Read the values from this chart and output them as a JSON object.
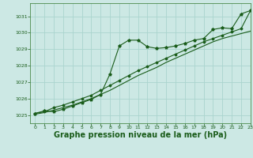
{
  "background_color": "#cce8e4",
  "grid_color": "#aad4ce",
  "line_color": "#1a5c1a",
  "xlabel": "Graphe pression niveau de la mer (hPa)",
  "xlabel_fontsize": 7,
  "xlim": [
    -0.5,
    23
  ],
  "ylim": [
    1024.5,
    1031.8
  ],
  "yticks": [
    1025,
    1026,
    1027,
    1028,
    1029,
    1030,
    1031
  ],
  "xticks": [
    0,
    1,
    2,
    3,
    4,
    5,
    6,
    7,
    8,
    9,
    10,
    11,
    12,
    13,
    14,
    15,
    16,
    17,
    18,
    19,
    20,
    21,
    22,
    23
  ],
  "series1_x": [
    0,
    1,
    2,
    3,
    4,
    5,
    6,
    7,
    8,
    9,
    10,
    11,
    12,
    13,
    14,
    15,
    16,
    17,
    18,
    19,
    20,
    21,
    22,
    23
  ],
  "series1_y": [
    1025.1,
    1025.25,
    1025.2,
    1025.35,
    1025.55,
    1025.75,
    1025.95,
    1026.25,
    1027.5,
    1029.2,
    1029.55,
    1029.55,
    1029.15,
    1029.05,
    1029.1,
    1029.2,
    1029.35,
    1029.55,
    1029.65,
    1030.2,
    1030.3,
    1030.25,
    1031.15,
    1031.35
  ],
  "series2_x": [
    0,
    1,
    2,
    3,
    4,
    5,
    6,
    7,
    8,
    9,
    10,
    11,
    12,
    13,
    14,
    15,
    16,
    17,
    18,
    19,
    20,
    21,
    22,
    23
  ],
  "series2_y": [
    1025.05,
    1025.15,
    1025.3,
    1025.45,
    1025.6,
    1025.8,
    1026.0,
    1026.25,
    1026.5,
    1026.8,
    1027.1,
    1027.4,
    1027.65,
    1027.9,
    1028.2,
    1028.45,
    1028.7,
    1028.95,
    1029.2,
    1029.45,
    1029.65,
    1029.8,
    1029.95,
    1030.1
  ],
  "series3_x": [
    0,
    1,
    2,
    3,
    4,
    5,
    6,
    7,
    8,
    9,
    10,
    11,
    12,
    13,
    14,
    15,
    16,
    17,
    18,
    19,
    20,
    21,
    22,
    23
  ],
  "series3_y": [
    1025.1,
    1025.2,
    1025.45,
    1025.6,
    1025.8,
    1026.0,
    1026.2,
    1026.5,
    1026.8,
    1027.1,
    1027.4,
    1027.7,
    1027.95,
    1028.2,
    1028.45,
    1028.7,
    1028.95,
    1029.2,
    1029.45,
    1029.65,
    1029.85,
    1030.05,
    1030.25,
    1031.35
  ]
}
